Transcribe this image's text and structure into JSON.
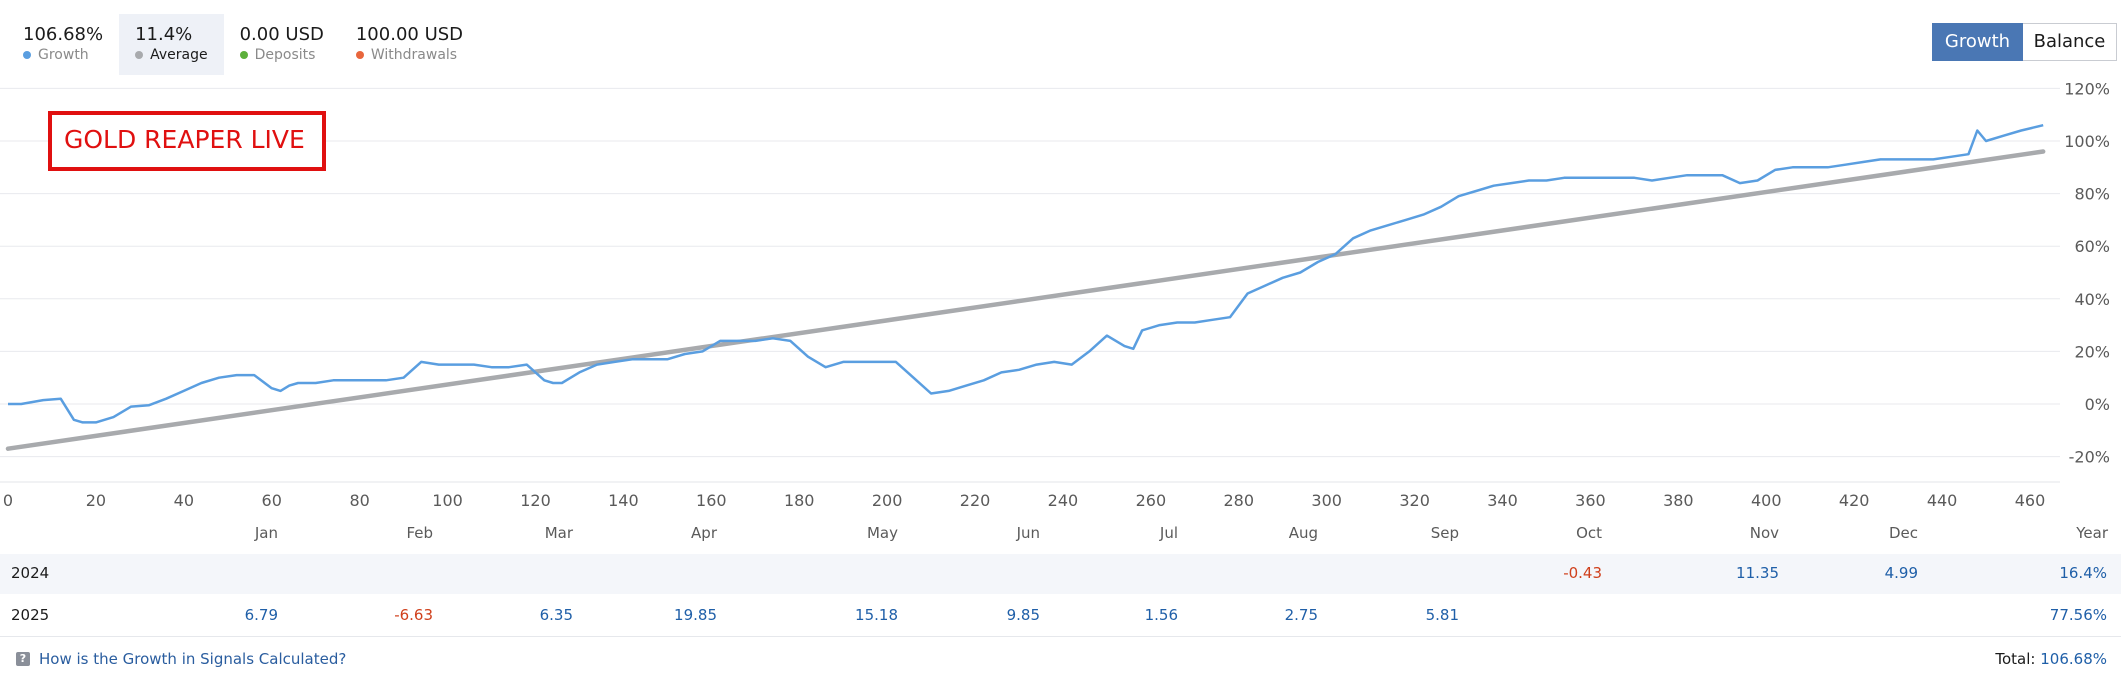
{
  "stats": [
    {
      "value": "106.68%",
      "label": "Growth",
      "color": "#5a9ee0"
    },
    {
      "value": "11.4%",
      "label": "Average",
      "color": "#a8aaad"
    },
    {
      "value": "0.00 USD",
      "label": "Deposits",
      "color": "#5cb03b"
    },
    {
      "value": "100.00 USD",
      "label": "Withdrawals",
      "color": "#e8663c"
    }
  ],
  "toggle": {
    "growth_label": "Growth",
    "balance_label": "Balance"
  },
  "overlay_label": "GOLD REAPER LIVE",
  "chart_data": {
    "type": "line",
    "xlim": [
      0,
      465
    ],
    "ylim": [
      -25,
      120
    ],
    "x_ticks": [
      "0",
      "20",
      "40",
      "60",
      "80",
      "100",
      "120",
      "140",
      "160",
      "180",
      "200",
      "220",
      "240",
      "260",
      "280",
      "300",
      "320",
      "340",
      "360",
      "380",
      "400",
      "420",
      "440",
      "460"
    ],
    "y_ticks": [
      "120%",
      "100%",
      "80%",
      "60%",
      "40%",
      "20%",
      "0%",
      "-20%"
    ],
    "grid": true,
    "colors": {
      "growth": "#5a9ee0",
      "trend": "#a8aaad"
    },
    "series": [
      {
        "x": [
          0,
          3,
          8,
          12,
          15,
          17,
          20,
          24,
          28,
          32,
          36,
          40,
          44,
          48,
          52,
          56,
          60,
          62,
          64,
          66,
          70,
          74,
          78,
          82,
          86,
          90,
          94,
          98,
          102,
          106,
          110,
          114,
          118,
          122,
          124,
          126,
          130,
          134,
          138,
          142,
          146,
          150,
          154,
          158,
          162,
          166,
          170,
          174,
          178,
          182,
          186,
          190,
          194,
          198,
          202,
          206,
          210,
          214,
          218,
          222,
          226,
          230,
          234,
          238,
          242,
          246,
          250,
          254,
          256,
          258,
          262,
          266,
          270,
          274,
          278,
          282,
          286,
          290,
          294,
          298,
          302,
          306,
          310,
          314,
          318,
          322,
          326,
          330,
          334,
          338,
          342,
          346,
          350,
          354,
          358,
          362,
          366,
          370,
          374,
          378,
          382,
          386,
          390,
          394,
          398,
          402,
          406,
          410,
          414,
          418,
          422,
          426,
          430,
          434,
          438,
          442,
          446,
          448,
          450,
          454,
          458,
          463
        ],
        "y": [
          0,
          0,
          1.5,
          2,
          -6,
          -7,
          -7,
          -5,
          -1,
          -0.5,
          2,
          5,
          8,
          10,
          11,
          11,
          6,
          5,
          7,
          8,
          8,
          9,
          9,
          9,
          9,
          10,
          16,
          15,
          15,
          15,
          14,
          14,
          15,
          9,
          8,
          8,
          12,
          15,
          16,
          17,
          17,
          17,
          19,
          20,
          24,
          24,
          24,
          25,
          24,
          18,
          14,
          16,
          16,
          16,
          16,
          10,
          4,
          5,
          7,
          9,
          12,
          13,
          15,
          16,
          15,
          20,
          26,
          22,
          21,
          28,
          30,
          31,
          31,
          32,
          33,
          42,
          45,
          48,
          50,
          54,
          57,
          63,
          66,
          68,
          70,
          72,
          75,
          79,
          81,
          83,
          84,
          85,
          85,
          86,
          86,
          86,
          86,
          86,
          85,
          86,
          87,
          87,
          87,
          84,
          85,
          89,
          90,
          90,
          90,
          91,
          92,
          93,
          93,
          93,
          93,
          94,
          95,
          104,
          100,
          102,
          104,
          106
        ]
      },
      {
        "x": [
          0,
          463
        ],
        "y": [
          -17,
          96
        ]
      }
    ]
  },
  "months": [
    "Jan",
    "Feb",
    "Mar",
    "Apr",
    "May",
    "Jun",
    "Jul",
    "Aug",
    "Sep",
    "Oct",
    "Nov",
    "Dec",
    "Year"
  ],
  "rows": [
    {
      "year": "2024",
      "cells": [
        "",
        "",
        "",
        "",
        "",
        "",
        "",
        "",
        "",
        "-0.43",
        "11.35",
        "4.99"
      ],
      "total": "16.4%"
    },
    {
      "year": "2025",
      "cells": [
        "6.79",
        "-6.63",
        "6.35",
        "19.85",
        "15.18",
        "9.85",
        "1.56",
        "2.75",
        "5.81",
        "",
        "",
        ""
      ],
      "total": "77.56%"
    }
  ],
  "footer": {
    "link": "How is the Growth in Signals Calculated?",
    "total_label": "Total:",
    "total_value": "106.68%",
    "help_glyph": "?"
  }
}
